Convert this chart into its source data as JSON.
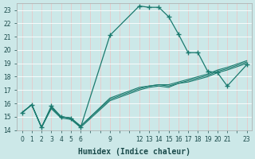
{
  "xlabel": "Humidex (Indice chaleur)",
  "bg_color": "#cce8e8",
  "grid_major_color": "#e8c8c8",
  "grid_minor_color": "#ffffff",
  "line_color": "#1a7a6e",
  "xlim": [
    -0.5,
    23.5
  ],
  "ylim": [
    14,
    23.5
  ],
  "xtick_labels": [
    "0",
    "1",
    "2",
    "3",
    "4",
    "5",
    "6",
    "",
    "",
    "9",
    "",
    "",
    "12",
    "13",
    "14",
    "15",
    "16",
    "17",
    "18",
    "19",
    "20",
    "21",
    "",
    "23"
  ],
  "yticks": [
    14,
    15,
    16,
    17,
    18,
    19,
    20,
    21,
    22,
    23
  ],
  "series": [
    {
      "x": [
        0,
        1,
        2,
        3,
        4,
        5,
        6,
        9,
        12,
        13,
        14,
        15,
        16,
        17,
        18,
        19,
        20,
        21,
        23
      ],
      "y": [
        15.3,
        15.9,
        14.2,
        15.8,
        15.0,
        14.9,
        14.2,
        21.1,
        23.3,
        23.2,
        23.2,
        22.5,
        21.2,
        19.8,
        19.8,
        18.4,
        18.3,
        17.3,
        18.9
      ],
      "marker": true
    },
    {
      "x": [
        0,
        1,
        2,
        3,
        4,
        5,
        6,
        9,
        12,
        13,
        14,
        15,
        16,
        17,
        18,
        19,
        20,
        21,
        23
      ],
      "y": [
        15.3,
        15.9,
        14.2,
        15.7,
        15.0,
        14.9,
        14.3,
        16.3,
        17.1,
        17.3,
        17.4,
        17.3,
        17.5,
        17.7,
        17.9,
        18.1,
        18.4,
        18.6,
        19.1
      ],
      "marker": false
    },
    {
      "x": [
        0,
        1,
        2,
        3,
        4,
        5,
        6,
        9,
        12,
        13,
        14,
        15,
        16,
        17,
        18,
        19,
        20,
        21,
        23
      ],
      "y": [
        15.3,
        15.9,
        14.2,
        15.6,
        14.9,
        14.8,
        14.2,
        16.2,
        17.0,
        17.2,
        17.3,
        17.2,
        17.5,
        17.6,
        17.8,
        18.0,
        18.3,
        18.5,
        19.0
      ],
      "marker": false
    },
    {
      "x": [
        0,
        1,
        2,
        3,
        4,
        5,
        6,
        9,
        12,
        13,
        14,
        15,
        16,
        17,
        18,
        19,
        20,
        21,
        23
      ],
      "y": [
        15.3,
        15.9,
        14.2,
        15.7,
        15.0,
        14.9,
        14.3,
        16.4,
        17.2,
        17.3,
        17.4,
        17.4,
        17.6,
        17.8,
        18.0,
        18.2,
        18.5,
        18.7,
        19.2
      ],
      "marker": false
    }
  ]
}
